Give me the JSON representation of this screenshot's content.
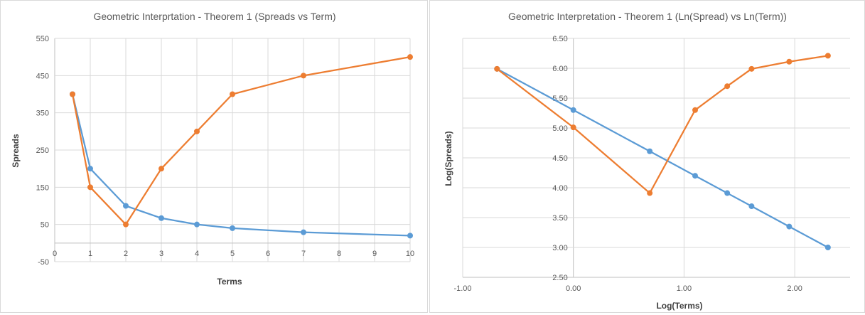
{
  "chart_data": [
    {
      "type": "line",
      "title": "Geometric Interprtation - Theorem 1 (Spreads vs Term)",
      "xlabel": "Terms",
      "ylabel": "Spreads",
      "xlim": [
        0,
        10
      ],
      "ylim": [
        -50,
        550
      ],
      "x_ticks": [
        "0",
        "1",
        "2",
        "3",
        "4",
        "5",
        "6",
        "7",
        "8",
        "9",
        "10"
      ],
      "y_ticks": [
        "-50",
        "50",
        "150",
        "250",
        "350",
        "450",
        "550"
      ],
      "grid": true,
      "series": [
        {
          "color": "#5b9bd5",
          "x": [
            0.5,
            1,
            2,
            3,
            4,
            5,
            7,
            10
          ],
          "y": [
            400,
            200,
            100,
            67,
            50,
            40,
            29,
            20
          ]
        },
        {
          "color": "#ed7d31",
          "x": [
            0.5,
            1,
            2,
            3,
            4,
            5,
            7,
            10
          ],
          "y": [
            400,
            150,
            50,
            200,
            300,
            400,
            450,
            500
          ]
        }
      ]
    },
    {
      "type": "line",
      "title": "Geometric Interpretation - Theorem 1 (Ln(Spread) vs Ln(Term))",
      "xlabel": "Log(Terms)",
      "ylabel": "Log(Spreads)",
      "xlim": [
        -1.0,
        2.5
      ],
      "ylim": [
        2.5,
        6.5
      ],
      "x_ticks": [
        "-1.00",
        "0.00",
        "1.00",
        "2.00"
      ],
      "y_ticks": [
        "2.50",
        "3.00",
        "3.50",
        "4.00",
        "4.50",
        "5.00",
        "5.50",
        "6.00",
        "6.50"
      ],
      "grid": true,
      "series": [
        {
          "color": "#5b9bd5",
          "x": [
            -0.69,
            0.0,
            0.69,
            1.1,
            1.39,
            1.61,
            1.95,
            2.3
          ],
          "y": [
            5.99,
            5.3,
            4.61,
            4.2,
            3.91,
            3.69,
            3.35,
            3.0
          ]
        },
        {
          "color": "#ed7d31",
          "x": [
            -0.69,
            0.0,
            0.69,
            1.1,
            1.39,
            1.61,
            1.95,
            2.3
          ],
          "y": [
            5.99,
            5.01,
            3.91,
            5.3,
            5.7,
            5.99,
            6.11,
            6.21
          ]
        }
      ]
    }
  ]
}
